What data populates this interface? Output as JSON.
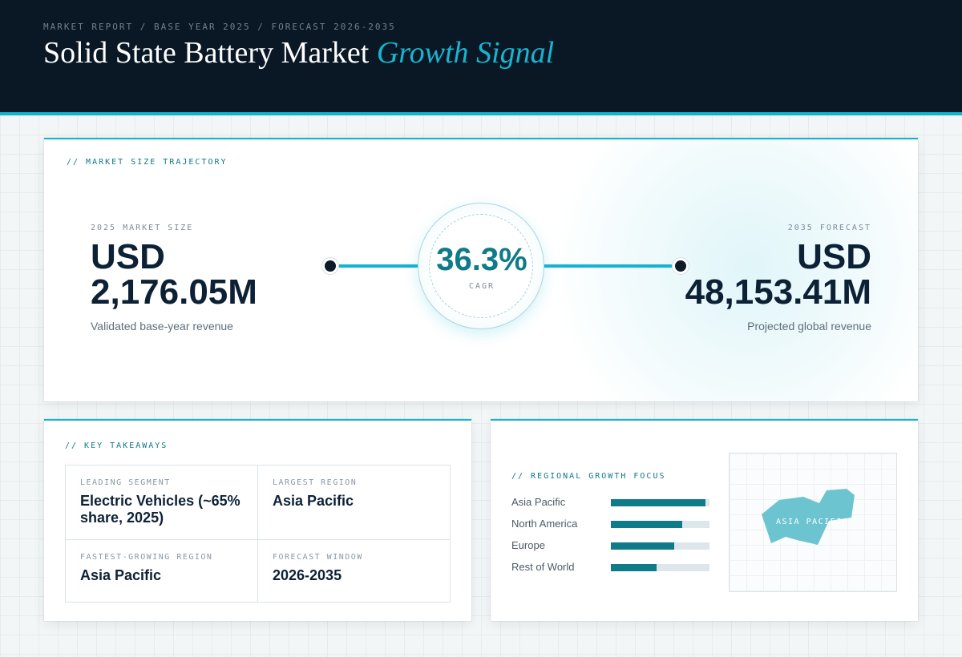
{
  "header": {
    "breadcrumb": "MARKET REPORT / BASE YEAR 2025 / FORECAST 2026-2035",
    "title_main": "Solid State Battery Market",
    "title_accent": "Growth Signal"
  },
  "trajectory": {
    "section_label": "// MARKET SIZE TRAJECTORY",
    "start": {
      "label": "2025 MARKET SIZE",
      "currency": "USD",
      "amount": "2,176.05M",
      "sub": "Validated base-year revenue"
    },
    "cagr": {
      "value": "36.3%",
      "label": "CAGR"
    },
    "end": {
      "label": "2035 FORECAST",
      "currency": "USD",
      "amount": "48,153.41M",
      "sub": "Projected global revenue"
    }
  },
  "takeaways": {
    "section_label": "// KEY TAKEAWAYS",
    "items": [
      {
        "key": "LEADING SEGMENT",
        "value": "Electric Vehicles (~65% share, 2025)"
      },
      {
        "key": "LARGEST REGION",
        "value": "Asia Pacific"
      },
      {
        "key": "FASTEST-GROWING REGION",
        "value": "Asia Pacific"
      },
      {
        "key": "FORECAST WINDOW",
        "value": "2026-2035"
      }
    ]
  },
  "regional": {
    "section_label": "// REGIONAL GROWTH FOCUS",
    "regions": [
      {
        "name": "Asia Pacific",
        "level": 0.96
      },
      {
        "name": "North America",
        "level": 0.72
      },
      {
        "name": "Europe",
        "level": 0.64
      },
      {
        "name": "Rest of World",
        "level": 0.46
      }
    ],
    "map_label": "ASIA PACIFIC"
  },
  "colors": {
    "accent": "#12b5cf",
    "teal_dark": "#0f7a88",
    "navy": "#0a1826",
    "map_fill": "#6cc4d0"
  }
}
